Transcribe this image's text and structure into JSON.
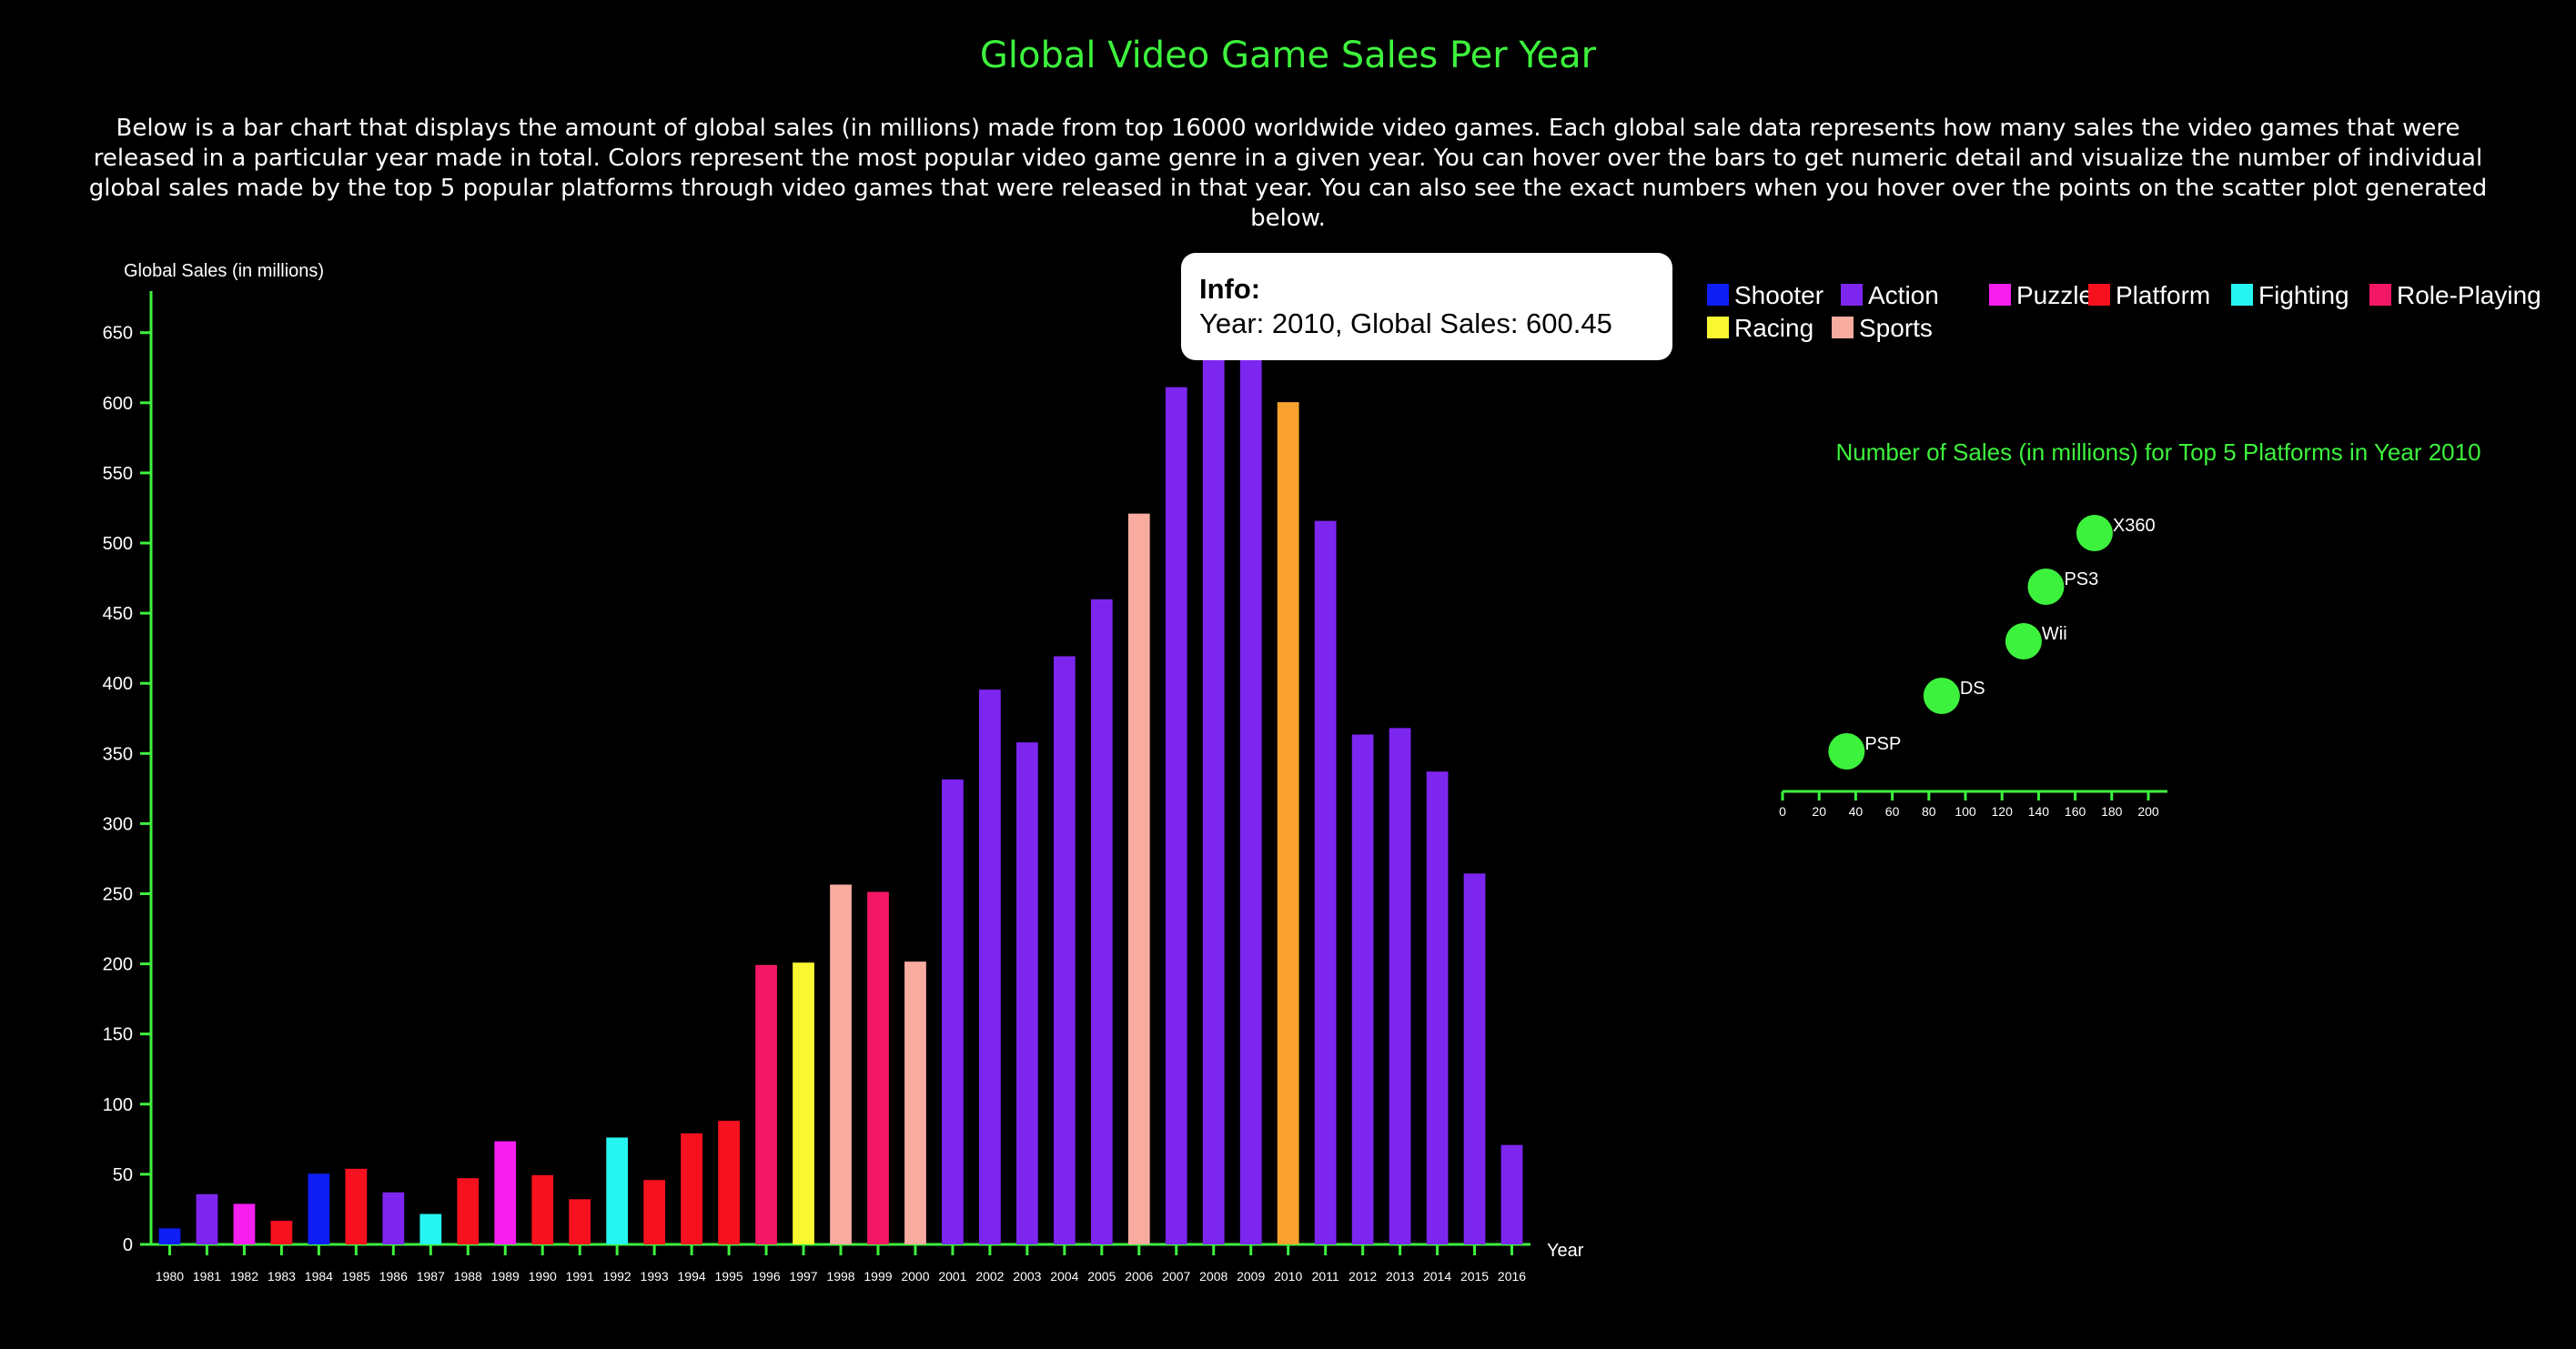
{
  "page": {
    "title": "Global Video Game Sales Per Year",
    "description": "Below is a bar chart that displays the amount of global sales (in millions) made from top 16000 worldwide video games. Each global sale data represents how many sales the video games that were released in a particular year made in total. Colors represent the most popular video game genre in a given year. You can hover over the bars to get numeric detail and visualize the number of individual global sales made by the top 5 popular platforms through video games that were released in that year. You can also see the exact numbers when you hover over the points on the scatter plot generated below."
  },
  "tooltip": {
    "heading": "Info:",
    "text": "Year: 2010, Global Sales: 600.45"
  },
  "colors": {
    "axis": "#3df23d",
    "highlight": "#f9a12e",
    "Shooter": "#0f1ef5",
    "Action": "#7d26f0",
    "Puzzle": "#f61ff0",
    "Platform": "#f7111f",
    "Fighting": "#27f5f2",
    "Role-Playing": "#f41766",
    "Racing": "#f9f731",
    "Sports": "#f8aca0",
    "scatter_point": "#3df23d"
  },
  "chart_data": [
    {
      "type": "bar",
      "title": "Global Video Game Sales Per Year",
      "ylabel": "Global Sales (in millions)",
      "xlabel": "Year",
      "ylim": [
        0,
        680
      ],
      "yticks": [
        0,
        50,
        100,
        150,
        200,
        250,
        300,
        350,
        400,
        450,
        500,
        550,
        600,
        650
      ],
      "highlighted_category": "2010",
      "legend": [
        "Shooter",
        "Action",
        "Puzzle",
        "Platform",
        "Fighting",
        "Role-Playing",
        "Racing",
        "Sports"
      ],
      "legend_position": "top-right",
      "categories": [
        "1980",
        "1981",
        "1982",
        "1983",
        "1984",
        "1985",
        "1986",
        "1987",
        "1988",
        "1989",
        "1990",
        "1991",
        "1992",
        "1993",
        "1994",
        "1995",
        "1996",
        "1997",
        "1998",
        "1999",
        "2000",
        "2001",
        "2002",
        "2003",
        "2004",
        "2005",
        "2006",
        "2007",
        "2008",
        "2009",
        "2010",
        "2011",
        "2012",
        "2013",
        "2014",
        "2015",
        "2016"
      ],
      "values": [
        11.4,
        35.8,
        28.9,
        16.8,
        50.4,
        53.9,
        37.1,
        21.7,
        47.2,
        73.5,
        49.4,
        32.2,
        76.2,
        45.9,
        79.2,
        88.1,
        199.2,
        200.9,
        256.5,
        251.3,
        201.6,
        331.5,
        395.5,
        357.9,
        419.3,
        459.9,
        521.0,
        611.1,
        678.9,
        667.3,
        600.45,
        515.8,
        363.5,
        368.1,
        337.1,
        264.4,
        70.9
      ],
      "genres": [
        "Shooter",
        "Action",
        "Puzzle",
        "Platform",
        "Shooter",
        "Platform",
        "Action",
        "Fighting",
        "Platform",
        "Puzzle",
        "Platform",
        "Platform",
        "Fighting",
        "Platform",
        "Platform",
        "Platform",
        "Role-Playing",
        "Racing",
        "Sports",
        "Role-Playing",
        "Sports",
        "Action",
        "Action",
        "Action",
        "Action",
        "Action",
        "Sports",
        "Action",
        "Action",
        "Action",
        "Action",
        "Action",
        "Action",
        "Action",
        "Action",
        "Action",
        "Action"
      ]
    },
    {
      "type": "scatter",
      "title": "Number of Sales (in millions) for Top 5 Platforms in Year 2010",
      "xlim": [
        0,
        210
      ],
      "xticks": [
        0,
        20,
        40,
        60,
        80,
        100,
        120,
        140,
        160,
        180,
        200
      ],
      "points": [
        {
          "label": "X360",
          "x": 170.6
        },
        {
          "label": "PS3",
          "x": 144.0
        },
        {
          "label": "Wii",
          "x": 131.8
        },
        {
          "label": "DS",
          "x": 87.0
        },
        {
          "label": "PSP",
          "x": 35.0
        }
      ]
    }
  ]
}
